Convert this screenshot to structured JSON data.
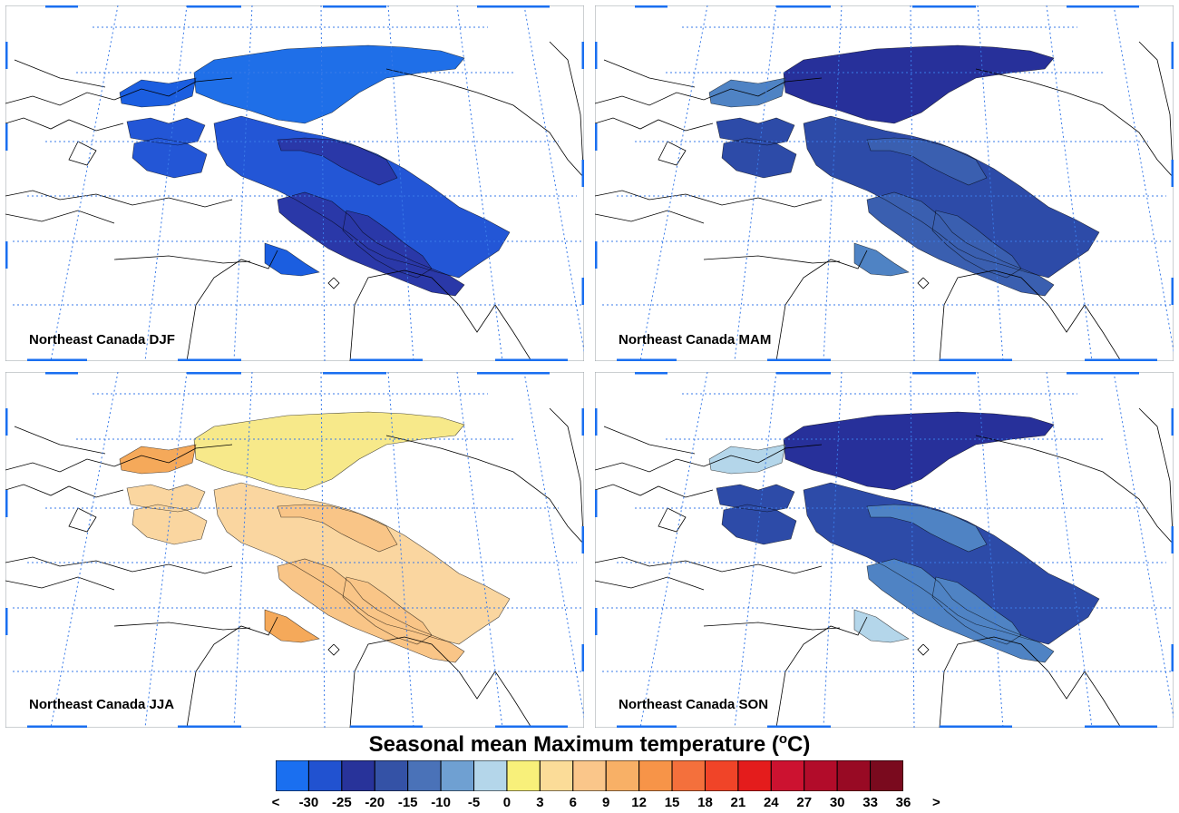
{
  "figure_title_main": "Seasonal mean Maximum temperature (",
  "figure_title_unit_sup": "o",
  "figure_title_unit_end": "C)",
  "panels": [
    {
      "label": "Northeast Canada DJF",
      "colors": [
        "#1f6fe8",
        "#2356d6",
        "#2a38a8",
        "#1b5ee0"
      ]
    },
    {
      "label": "Northeast Canada MAM",
      "colors": [
        "#27309a",
        "#2d4ba8",
        "#3a5fb0",
        "#4f83c4"
      ]
    },
    {
      "label": "Northeast Canada JJA",
      "colors": [
        "#f7e98a",
        "#fad6a0",
        "#f9c587",
        "#f5a95a"
      ]
    },
    {
      "label": "Northeast Canada SON",
      "colors": [
        "#27309a",
        "#2d4ba8",
        "#4f83c4",
        "#b4d6ea"
      ]
    }
  ],
  "colorbar": {
    "colors": [
      "#1a6ff0",
      "#2152d0",
      "#28339a",
      "#3452a6",
      "#4a72b8",
      "#6fa0d2",
      "#b4d6ea",
      "#f8f07a",
      "#fbdc98",
      "#fac68a",
      "#f8b066",
      "#f79448",
      "#f4703c",
      "#f04428",
      "#e41c1c",
      "#cc1230",
      "#b20c2a",
      "#980a24",
      "#7a0a1e"
    ],
    "labels": [
      "<",
      "-30",
      "-25",
      "-20",
      "-15",
      "-10",
      "-5",
      "0",
      "3",
      "6",
      "9",
      "12",
      "15",
      "18",
      "21",
      "24",
      "27",
      "30",
      "33",
      "36",
      ">"
    ]
  }
}
